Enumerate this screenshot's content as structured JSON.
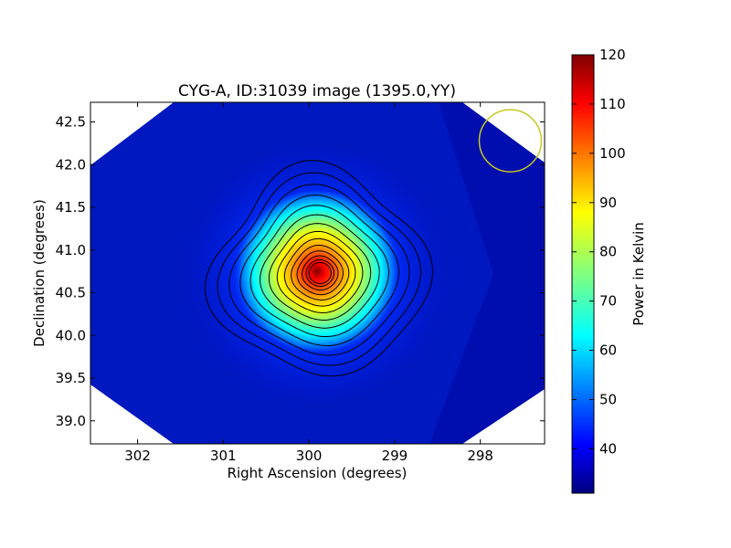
{
  "chart_data": {
    "type": "heatmap",
    "title": "CYG-A, ID:31039 image (1395.0,YY)",
    "xlabel": "Right Ascension (degrees)",
    "ylabel": "Declination (degrees)",
    "xlim": [
      302.55,
      297.25
    ],
    "ylim": [
      38.73,
      42.73
    ],
    "x_ticks": [
      302,
      301,
      300,
      299,
      298
    ],
    "x_tick_labels": [
      "302",
      "301",
      "300",
      "299",
      "298"
    ],
    "y_ticks": [
      39.0,
      39.5,
      40.0,
      40.5,
      41.0,
      41.5,
      42.0,
      42.5
    ],
    "y_tick_labels": [
      "39.0",
      "39.5",
      "40.0",
      "40.5",
      "41.0",
      "41.5",
      "42.0",
      "42.5"
    ],
    "source": {
      "name": "CYG-A",
      "ra": 299.87,
      "dec": 40.73,
      "peak_value": 118
    },
    "background_value": 36,
    "contour_count": 14,
    "beam_marker": {
      "ra": 297.65,
      "dec": 42.28,
      "color": "#c8c81e"
    },
    "colorbar": {
      "label": "Power in Kelvin",
      "min": 31,
      "max": 120,
      "ticks": [
        40,
        50,
        60,
        70,
        80,
        90,
        100,
        110,
        120
      ],
      "tick_labels": [
        "40",
        "50",
        "60",
        "70",
        "80",
        "90",
        "100",
        "110",
        "120"
      ],
      "colormap": "jet"
    }
  }
}
